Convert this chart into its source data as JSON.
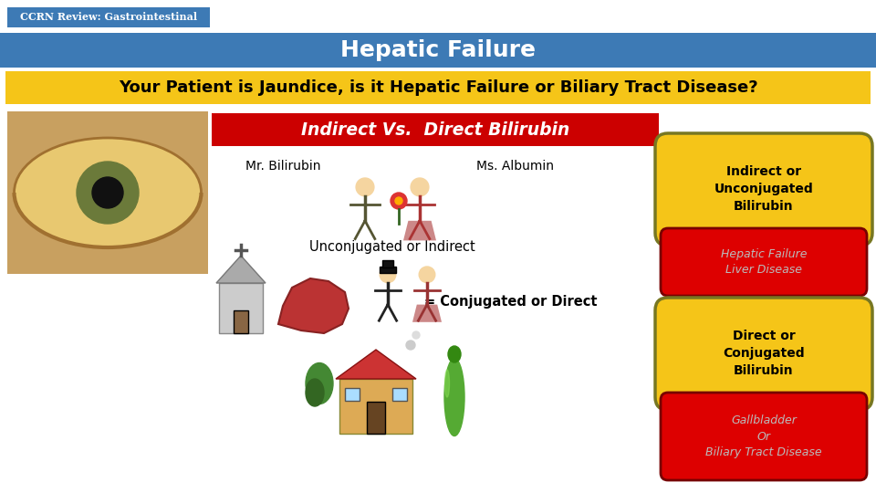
{
  "bg_color": "#ffffff",
  "title_bar_color": "#3d7ab5",
  "title_text": "Hepatic Failure",
  "title_text_color": "#ffffff",
  "subtitle_bg_color": "#f5c518",
  "subtitle_text": "Your Patient is Jaundice, is it Hepatic Failure or Biliary Tract Disease?",
  "subtitle_text_color": "#000000",
  "tag_bg_color": "#3d7ab5",
  "tag_text": "CCRN Review: Gastrointestinal",
  "tag_text_color": "#ffffff",
  "red_banner_color": "#cc0000",
  "red_banner_text": "Indirect Vs.  Direct Bilirubin",
  "red_banner_text_color": "#ffffff",
  "oval1_color": "#f5c518",
  "oval1_text": "Indirect or\nUnconjugated\nBilirubin",
  "oval1_text_color": "#000000",
  "red_box1_color": "#dd0000",
  "red_box1_text": "Hepatic Failure\nLiver Disease",
  "red_box1_text_color": "#bbbbbb",
  "oval2_color": "#f5c518",
  "oval2_text": "Direct or\nConjugated\nBilirubin",
  "oval2_text_color": "#000000",
  "red_box2_color": "#dd0000",
  "red_box2_text": "Gallbladder\nOr\nBiliary Tract Disease",
  "red_box2_text_color": "#bbbbbb",
  "label_mr_bilirubin": "Mr. Bilirubin",
  "label_ms_albumin": "Ms. Albumin",
  "label_unconjugated": "Unconjugated or Indirect",
  "label_conjugated": "= Conjugated or Direct",
  "label_text_color": "#000000"
}
